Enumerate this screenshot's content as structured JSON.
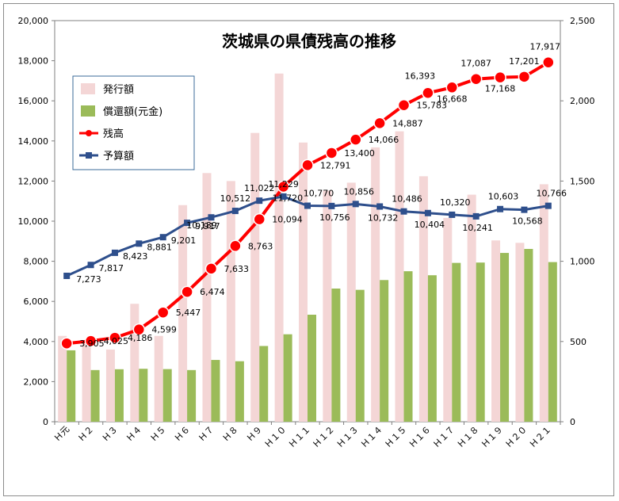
{
  "chart_data": {
    "type": "bar",
    "title": "茨城県の県債残高の推移",
    "categories": [
      "H元",
      "H2",
      "H3",
      "H4",
      "H5",
      "H6",
      "H7",
      "H8",
      "H9",
      "H10",
      "H11",
      "H12",
      "H13",
      "H14",
      "H15",
      "H16",
      "H17",
      "H18",
      "H19",
      "H20",
      "H21"
    ],
    "category_display": [
      "Ｈ元",
      "Ｈ２",
      "Ｈ３",
      "Ｈ４",
      "Ｈ５",
      "Ｈ６",
      "Ｈ７",
      "Ｈ８",
      "Ｈ９",
      "Ｈ１０",
      "Ｈ１１",
      "Ｈ１２",
      "Ｈ１３",
      "Ｈ１４",
      "Ｈ１５",
      "Ｈ１６",
      "Ｈ１７",
      "Ｈ１８",
      "Ｈ１９",
      "Ｈ２０",
      "Ｈ２１"
    ],
    "y_left": {
      "min": 0,
      "max": 20000,
      "ticks": [
        "0",
        "2,000",
        "4,000",
        "6,000",
        "8,000",
        "10,000",
        "12,000",
        "14,000",
        "16,000",
        "18,000",
        "20,000"
      ]
    },
    "y_right": {
      "min": 0,
      "max": 2500,
      "ticks": [
        "0",
        "500",
        "1,000",
        "1,500",
        "2,000",
        "2,500"
      ]
    },
    "legend_position": "top-left",
    "series": [
      {
        "name": "発行額",
        "kind": "bar",
        "axis": "right",
        "color": "#f4d6d6",
        "values": [
          535,
          490,
          450,
          735,
          535,
          1350,
          1550,
          1500,
          1800,
          2170,
          1740,
          1440,
          1490,
          1710,
          1810,
          1530,
          1270,
          1415,
          1130,
          1115,
          1480
        ]
      },
      {
        "name": "償還額(元金)",
        "kind": "bar",
        "axis": "right",
        "color": "#9bbb59",
        "values": [
          445,
          322,
          327,
          330,
          328,
          322,
          385,
          377,
          472,
          545,
          667,
          830,
          822,
          883,
          938,
          913,
          990,
          992,
          1052,
          1077,
          995
        ]
      },
      {
        "name": "残高",
        "kind": "line",
        "axis": "left",
        "color": "#ff0000",
        "values": [
          3905,
          4025,
          4186,
          4599,
          5447,
          6474,
          7633,
          8763,
          10094,
          11720,
          12791,
          13400,
          14066,
          14887,
          15783,
          16393,
          16668,
          17087,
          17168,
          17201,
          17917
        ],
        "labels": [
          "3,905",
          "4,025",
          "4,186",
          "4,599",
          "5,447",
          "6,474",
          "7,633",
          "8,763",
          "10,094",
          "11,720",
          "12,791",
          "13,400",
          "14,066",
          "14,887",
          "15,783",
          "16,393",
          "16,668",
          "17,087",
          "17,168",
          "17,201",
          "17,917"
        ]
      },
      {
        "name": "予算額",
        "kind": "line",
        "axis": "left",
        "color": "#2e4f8c",
        "values": [
          7273,
          7817,
          8423,
          8881,
          9201,
          9917,
          10189,
          10512,
          11022,
          11229,
          10770,
          10756,
          10856,
          10732,
          10486,
          10404,
          10320,
          10241,
          10603,
          10568,
          10766
        ],
        "labels": [
          "7,273",
          "7,817",
          "8,423",
          "8,881",
          "9,201",
          "9,917",
          "10,189",
          "10,512",
          "11,022",
          "11,229",
          "10,770",
          "10,756",
          "10,856",
          "10,732",
          "10,486",
          "10,404",
          "10,320",
          "10,241",
          "10,603",
          "10,568",
          "10,766"
        ]
      }
    ]
  }
}
